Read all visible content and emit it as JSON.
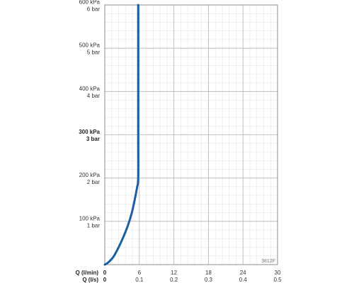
{
  "chart_data": {
    "type": "line",
    "title": "",
    "code": "3812F",
    "y_ticks": [
      {
        "value": 100,
        "kpa": "100 kPa",
        "bar": "1 bar",
        "bold": false
      },
      {
        "value": 200,
        "kpa": "200 kPa",
        "bar": "2 bar",
        "bold": false
      },
      {
        "value": 300,
        "kpa": "300 kPa",
        "bar": "3 bar",
        "bold": true
      },
      {
        "value": 400,
        "kpa": "400 kPa",
        "bar": "4 bar",
        "bold": false
      },
      {
        "value": 500,
        "kpa": "500 kPa",
        "bar": "5 bar",
        "bold": false
      },
      {
        "value": 600,
        "kpa": "600 kPa",
        "bar": "6 bar",
        "bold": false
      }
    ],
    "x_axis_primary": {
      "label": "Q (l/min)",
      "ticks": [
        {
          "value": 0,
          "label": "0"
        },
        {
          "value": 6,
          "label": "6"
        },
        {
          "value": 12,
          "label": "12"
        },
        {
          "value": 18,
          "label": "18"
        },
        {
          "value": 24,
          "label": "24"
        },
        {
          "value": 30,
          "label": "30"
        }
      ]
    },
    "x_axis_secondary": {
      "label": "Q (l/s)",
      "ticks": [
        {
          "value": 0,
          "label": "0"
        },
        {
          "value": 6,
          "label": "0.1"
        },
        {
          "value": 12,
          "label": "0.2"
        },
        {
          "value": 18,
          "label": "0.3"
        },
        {
          "value": 24,
          "label": "0.4"
        },
        {
          "value": 30,
          "label": "0.5"
        }
      ]
    },
    "xlim": [
      0,
      30
    ],
    "ylim": [
      0,
      600
    ],
    "grid": true,
    "series": [
      {
        "color": "#1a5fa0",
        "points": [
          {
            "x": 0,
            "y": 0
          },
          {
            "x": 0.6,
            "y": 5
          },
          {
            "x": 1.5,
            "y": 18
          },
          {
            "x": 2.4,
            "y": 40
          },
          {
            "x": 3.2,
            "y": 63
          },
          {
            "x": 4.0,
            "y": 90
          },
          {
            "x": 4.7,
            "y": 120
          },
          {
            "x": 5.2,
            "y": 150
          },
          {
            "x": 5.6,
            "y": 178
          },
          {
            "x": 5.8,
            "y": 200
          },
          {
            "x": 5.8,
            "y": 300
          },
          {
            "x": 5.8,
            "y": 400
          },
          {
            "x": 5.8,
            "y": 500
          },
          {
            "x": 5.8,
            "y": 600
          }
        ]
      }
    ]
  },
  "colors": {
    "grid_major": "#b4b4b4",
    "grid_minor": "#e2e2e2",
    "border": "#8c8c8c",
    "curve": "#1a5fa0"
  }
}
